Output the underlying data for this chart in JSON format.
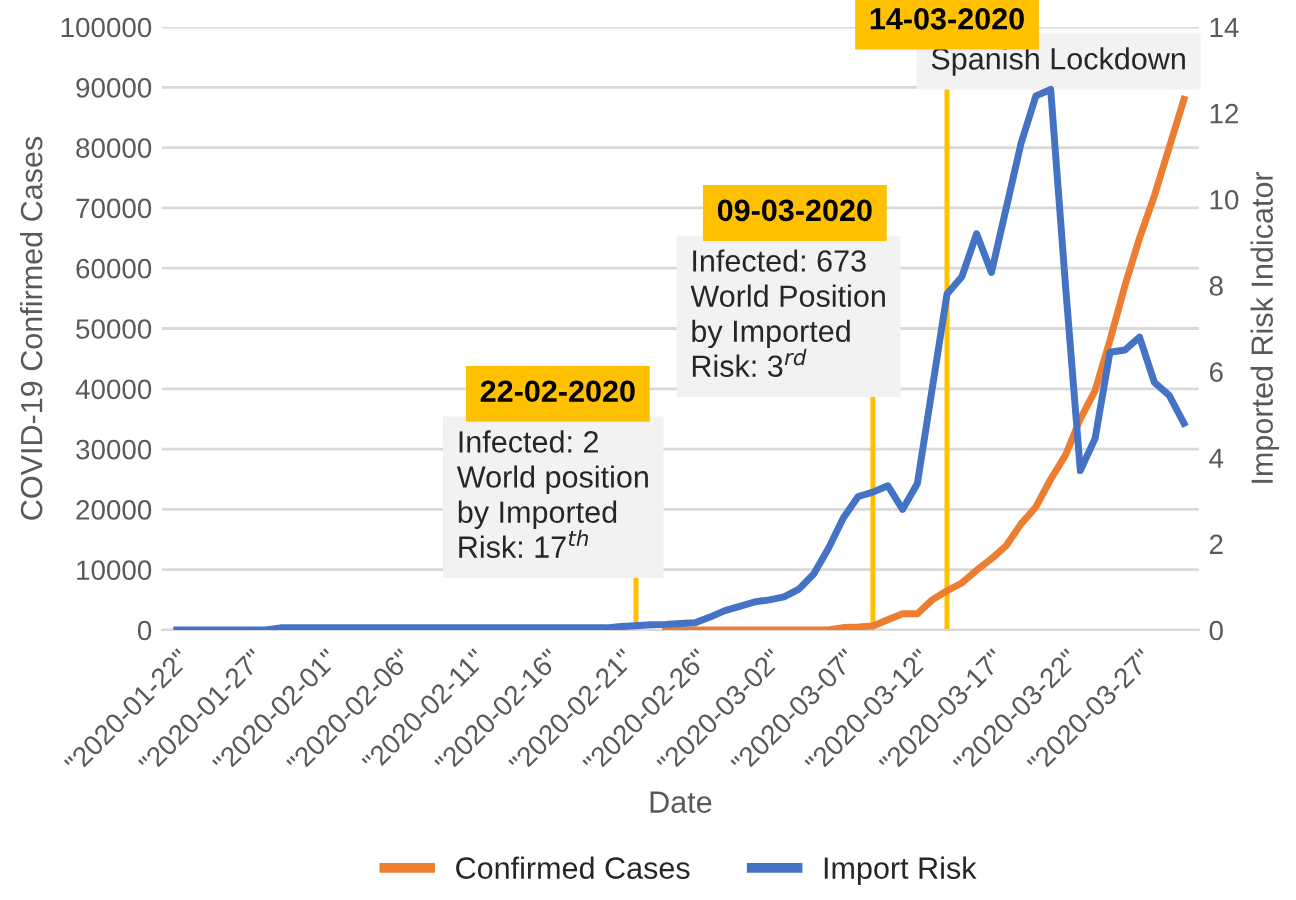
{
  "chart_data": {
    "type": "line",
    "xlabel": "Date",
    "ylabel": "COVID-19 Confirmed Cases",
    "y2label": "Imported Risk Indicator",
    "x": [
      "2020-01-22",
      "2020-01-23",
      "2020-01-24",
      "2020-01-25",
      "2020-01-26",
      "2020-01-27",
      "2020-01-28",
      "2020-01-29",
      "2020-01-30",
      "2020-01-31",
      "2020-02-01",
      "2020-02-02",
      "2020-02-03",
      "2020-02-04",
      "2020-02-05",
      "2020-02-06",
      "2020-02-07",
      "2020-02-08",
      "2020-02-09",
      "2020-02-10",
      "2020-02-11",
      "2020-02-12",
      "2020-02-13",
      "2020-02-14",
      "2020-02-15",
      "2020-02-16",
      "2020-02-17",
      "2020-02-18",
      "2020-02-19",
      "2020-02-20",
      "2020-02-21",
      "2020-02-22",
      "2020-02-23",
      "2020-02-24",
      "2020-02-25",
      "2020-02-26",
      "2020-02-27",
      "2020-02-28",
      "2020-02-29",
      "2020-03-01",
      "2020-03-02",
      "2020-03-03",
      "2020-03-04",
      "2020-03-05",
      "2020-03-06",
      "2020-03-07",
      "2020-03-08",
      "2020-03-09",
      "2020-03-10",
      "2020-03-11",
      "2020-03-12",
      "2020-03-13",
      "2020-03-14",
      "2020-03-15",
      "2020-03-16",
      "2020-03-17",
      "2020-03-18",
      "2020-03-19",
      "2020-03-20",
      "2020-03-21",
      "2020-03-22",
      "2020-03-23",
      "2020-03-24",
      "2020-03-25",
      "2020-03-26",
      "2020-03-27",
      "2020-03-28",
      "2020-03-29",
      "2020-03-30"
    ],
    "series": [
      {
        "name": "Confirmed Cases",
        "color": "#ed7d31",
        "values": [
          null,
          null,
          null,
          null,
          null,
          null,
          null,
          null,
          null,
          null,
          null,
          null,
          null,
          null,
          null,
          null,
          null,
          null,
          null,
          null,
          null,
          null,
          null,
          null,
          null,
          null,
          null,
          null,
          null,
          null,
          null,
          null,
          null,
          0,
          0,
          0,
          0,
          0,
          0,
          0,
          0,
          0,
          0,
          0,
          0,
          400,
          500,
          673,
          1700,
          2700,
          2700,
          5000,
          6500,
          7800,
          9900,
          11800,
          14000,
          17600,
          20400,
          25000,
          29000,
          35000,
          39700,
          48000,
          57000,
          65000,
          72000,
          80000,
          88000
        ]
      },
      {
        "name": "Import Risk",
        "color": "#4472c4",
        "axis": "y2",
        "values": [
          0,
          0,
          0,
          0,
          0,
          0,
          0,
          0.05,
          0.05,
          0.05,
          0.05,
          0.05,
          0.05,
          0.05,
          0.05,
          0.05,
          0.05,
          0.05,
          0.05,
          0.05,
          0.05,
          0.05,
          0.05,
          0.05,
          0.05,
          0.05,
          0.05,
          0.05,
          0.05,
          0.05,
          0.08,
          0.1,
          0.12,
          0.13,
          0.15,
          0.17,
          0.3,
          0.45,
          0.55,
          0.65,
          0.7,
          0.77,
          0.95,
          1.3,
          1.9,
          2.6,
          3.1,
          3.2,
          3.35,
          2.8,
          3.4,
          5.6,
          7.8,
          8.2,
          9.2,
          8.3,
          9.8,
          11.3,
          12.4,
          12.55,
          8.0,
          3.7,
          4.45,
          6.45,
          6.5,
          6.8,
          5.75,
          5.45,
          4.8
        ]
      }
    ],
    "xlim": [
      "2020-01-21",
      "2020-03-31"
    ],
    "xticks": [
      {
        "value": "2020-01-22",
        "label": "\"2020-01-22\""
      },
      {
        "value": "2020-01-27",
        "label": "\"2020-01-27\""
      },
      {
        "value": "2020-02-01",
        "label": "\"2020-02-01\""
      },
      {
        "value": "2020-02-06",
        "label": "\"2020-02-06\""
      },
      {
        "value": "2020-02-11",
        "label": "\"2020-02-11\""
      },
      {
        "value": "2020-02-16",
        "label": "\"2020-02-16\""
      },
      {
        "value": "2020-02-21",
        "label": "\"2020-02-21\""
      },
      {
        "value": "2020-02-26",
        "label": "\"2020-02-26\""
      },
      {
        "value": "2020-03-02",
        "label": "\"2020-03-02\""
      },
      {
        "value": "2020-03-07",
        "label": "\"2020-03-07\""
      },
      {
        "value": "2020-03-12",
        "label": "\"2020-03-12\""
      },
      {
        "value": "2020-03-17",
        "label": "\"2020-03-17\""
      },
      {
        "value": "2020-03-22",
        "label": "\"2020-03-22\""
      },
      {
        "value": "2020-03-27",
        "label": "\"2020-03-27\""
      }
    ],
    "ylim": [
      0,
      100000
    ],
    "yticks": [
      0,
      10000,
      20000,
      30000,
      40000,
      50000,
      60000,
      70000,
      80000,
      90000,
      100000
    ],
    "y2lim": [
      0,
      14
    ],
    "y2ticks": [
      0,
      2,
      4,
      6,
      8,
      10,
      12,
      14
    ],
    "grid": "y",
    "legend": "bottom",
    "marker": "none",
    "line_style": "solid",
    "ref_lines": [
      {
        "axis": "x",
        "value": "2020-02-22",
        "label": "22-02-2020",
        "color": "#ffc000"
      },
      {
        "axis": "x",
        "value": "2020-03-09",
        "label": "09-03-2020",
        "color": "#ffc000"
      },
      {
        "axis": "x",
        "value": "2020-03-14",
        "label": "14-03-2020",
        "color": "#ffc000"
      }
    ],
    "annotations": [
      {
        "text": "Infected: 2\nWorld position\nby Imported\nRisk: 17$^{th}$",
        "x": "2020-02-22",
        "y": 10000
      },
      {
        "text": "Infected: 673\nWorld Position\nby Imported\nRisk: 3$^{rd}$",
        "x": "2020-03-09",
        "y": 40000
      },
      {
        "text": "Spanish Lockdown",
        "x": "2020-03-14",
        "y": 91000
      }
    ]
  }
}
